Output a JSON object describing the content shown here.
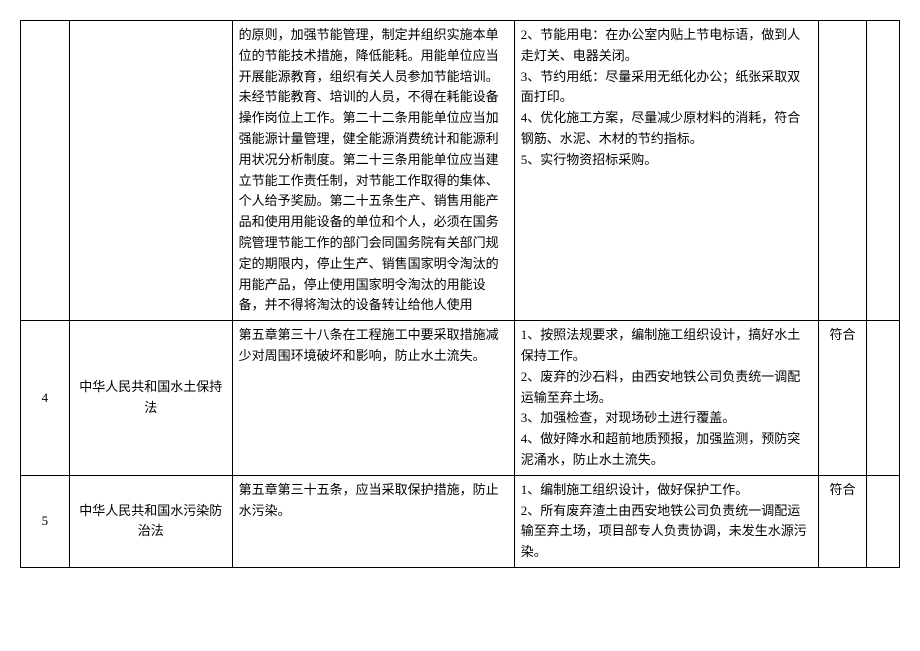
{
  "rows": [
    {
      "num": "",
      "law": "",
      "clause": "的原则，加强节能管理，制定并组织实施本单位的节能技术措施，降低能耗。用能单位应当开展能源教育，组织有关人员参加节能培训。未经节能教育、培训的人员，不得在耗能设备操作岗位上工作。第二十二条用能单位应当加强能源计量管理，健全能源消费统计和能源利用状况分析制度。第二十三条用能单位应当建立节能工作责任制，对节能工作取得的集体、个人给予奖励。第二十五条生产、销售用能产品和使用用能设备的单位和个人，必须在国务院管理节能工作的部门会同国务院有关部门规定的期限内，停止生产、销售国家明令淘汰的用能产品，停止使用国家明令淘汰的用能设备，并不得将淘汰的设备转让给他人使用",
      "measures": "2、节能用电：在办公室内贴上节电标语，做到人走灯关、电器关闭。\n3、节约用纸：尽量采用无纸化办公；纸张采取双面打印。\n4、优化施工方案，尽量减少原材料的消耗，符合钢筋、水泥、木材的节约指标。\n5、实行物资招标采购。",
      "status": "",
      "last": ""
    },
    {
      "num": "4",
      "law": "中华人民共和国水土保持法",
      "clause": "第五章第三十八条在工程施工中要采取措施减少对周围环境破坏和影响，防止水土流失。",
      "measures": "1、按照法规要求，编制施工组织设计，搞好水土保持工作。\n2、废弃的沙石料，由西安地铁公司负责统一调配运输至弃土场。\n3、加强检查，对现场砂土进行覆盖。\n4、做好降水和超前地质预报，加强监测，预防突泥涌水，防止水土流失。",
      "status": "符合",
      "last": ""
    },
    {
      "num": "5",
      "law": "中华人民共和国水污染防治法",
      "clause": "第五章第三十五条，应当采取保护措施，防止水污染。",
      "measures": "1、编制施工组织设计，做好保护工作。\n2、所有废弃渣土由西安地铁公司负责统一调配运输至弃土场，项目部专人负责协调，未发生水源污染。",
      "status": "符合",
      "last": ""
    }
  ]
}
